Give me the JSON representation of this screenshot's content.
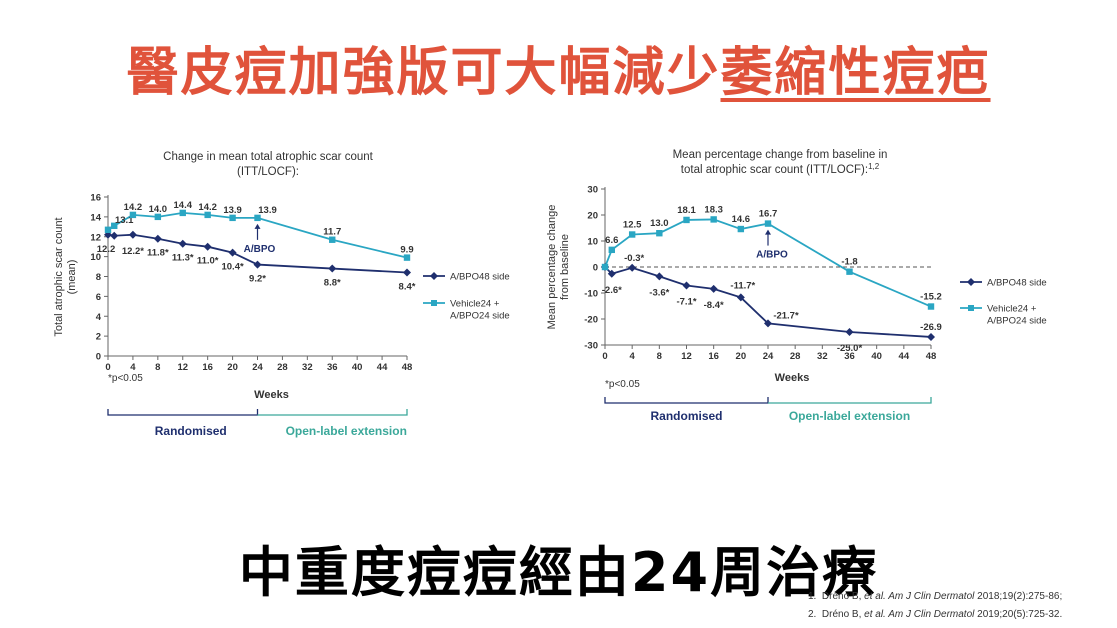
{
  "page": {
    "title_main": "醫皮痘加強版可大幅減少",
    "title_underlined": "萎縮性痘疤",
    "subtitle": "中重度痘痘經由24周治療",
    "references": [
      {
        "num": "1.",
        "pre": "Dréno B, ",
        "it": "et al. Am J Clin Dermatol",
        "post": " 2018;19(2):275-86;"
      },
      {
        "num": "2.",
        "pre": "Dréno B, ",
        "it": "et al. Am J Clin Dermatol",
        "post": " 2019;20(5):725-32."
      }
    ]
  },
  "colors": {
    "title": "#e0533b",
    "abpo48": "#1f2f6e",
    "vehicle": "#2aa6c3",
    "ext_bracket": "#3ba89a"
  },
  "chart_data": [
    {
      "type": "line",
      "title": "Change in mean total atrophic scar count (ITT/LOCF):",
      "title_line1": "Change in mean total atrophic scar count",
      "title_line2": "(ITT/LOCF):",
      "xlabel": "Weeks",
      "ylabel": "Total atrophic scar count (mean)",
      "ylabel_line1": "Total atrophic scar count",
      "ylabel_line2": "(mean)",
      "xlim": [
        0,
        48
      ],
      "ylim": [
        0,
        16
      ],
      "xticks": [
        0,
        4,
        8,
        12,
        16,
        20,
        24,
        28,
        32,
        36,
        40,
        44,
        48
      ],
      "yticks": [
        0,
        2,
        4,
        6,
        8,
        10,
        12,
        14,
        16
      ],
      "footnote": "*p<0.05",
      "annotation": "A/BPO",
      "annotation_x": 24,
      "phases": [
        "Randomised",
        "Open-label extension"
      ],
      "phase_split": 24,
      "series": [
        {
          "name": "A/BPO48 side",
          "color": "#1f2f6e",
          "marker": "diamond",
          "x": [
            0,
            1,
            4,
            8,
            12,
            16,
            20,
            24,
            36,
            48
          ],
          "values": [
            12.2,
            12.1,
            12.2,
            11.8,
            11.3,
            11.0,
            10.4,
            9.2,
            8.8,
            8.4
          ],
          "labels": [
            "12.2",
            "",
            "12.2*",
            "11.8*",
            "11.3*",
            "11.0*",
            "10.4*",
            "9.2*",
            "8.8*",
            "8.4*"
          ]
        },
        {
          "name": "Vehicle24 + A/BPO24 side",
          "name_line1": "Vehicle24 +",
          "name_line2": "A/BPO24 side",
          "color": "#2aa6c3",
          "marker": "square",
          "x": [
            0,
            1,
            4,
            8,
            12,
            16,
            20,
            24,
            36,
            48
          ],
          "values": [
            12.7,
            13.1,
            14.2,
            14.0,
            14.4,
            14.2,
            13.9,
            13.9,
            11.7,
            9.9
          ],
          "labels": [
            "",
            "13.1",
            "14.2",
            "14.0",
            "14.4",
            "14.2",
            "13.9",
            "13.9",
            "11.7",
            "9.9"
          ]
        }
      ]
    },
    {
      "type": "line",
      "title": "Mean percentage change from baseline in total atrophic scar count (ITT/LOCF):1,2",
      "title_line1": "Mean percentage change from baseline in",
      "title_line2": "total atrophic scar count (ITT/LOCF):",
      "title_sup": "1,2",
      "xlabel": "Weeks",
      "ylabel": "Mean percentage change from baseline",
      "ylabel_line1": "Mean percentage change",
      "ylabel_line2": "from baseline",
      "xlim": [
        0,
        48
      ],
      "ylim": [
        -30,
        30
      ],
      "xticks": [
        0,
        4,
        8,
        12,
        16,
        20,
        24,
        28,
        32,
        36,
        40,
        44,
        48
      ],
      "yticks": [
        -30,
        -20,
        -10,
        0,
        10,
        20,
        30
      ],
      "footnote": "*p<0.05",
      "annotation": "A/BPO",
      "annotation_x": 24,
      "phases": [
        "Randomised",
        "Open-label extension"
      ],
      "phase_split": 24,
      "series": [
        {
          "name": "A/BPO48 side",
          "color": "#1f2f6e",
          "marker": "diamond",
          "x": [
            0,
            1,
            4,
            8,
            12,
            16,
            20,
            24,
            36,
            48
          ],
          "values": [
            0,
            -2.6,
            -0.3,
            -3.6,
            -7.1,
            -8.4,
            -11.7,
            -21.7,
            -25.0,
            -26.9
          ],
          "labels": [
            "",
            "-2.6*",
            "-0.3*",
            "-3.6*",
            "-7.1*",
            "-8.4*",
            "-11.7*",
            "-21.7*",
            "-25.0*",
            "-26.9"
          ]
        },
        {
          "name": "Vehicle24 + A/BPO24 side",
          "name_line1": "Vehicle24 +",
          "name_line2": "A/BPO24 side",
          "color": "#2aa6c3",
          "marker": "square",
          "x": [
            0,
            1,
            4,
            8,
            12,
            16,
            20,
            24,
            36,
            48
          ],
          "values": [
            0,
            6.6,
            12.5,
            13.0,
            18.1,
            18.3,
            14.6,
            16.7,
            -1.8,
            -15.2
          ],
          "labels": [
            "",
            "6.6",
            "12.5",
            "13.0",
            "18.1",
            "18.3",
            "14.6",
            "16.7",
            "-1.8",
            "-15.2"
          ]
        }
      ]
    }
  ]
}
